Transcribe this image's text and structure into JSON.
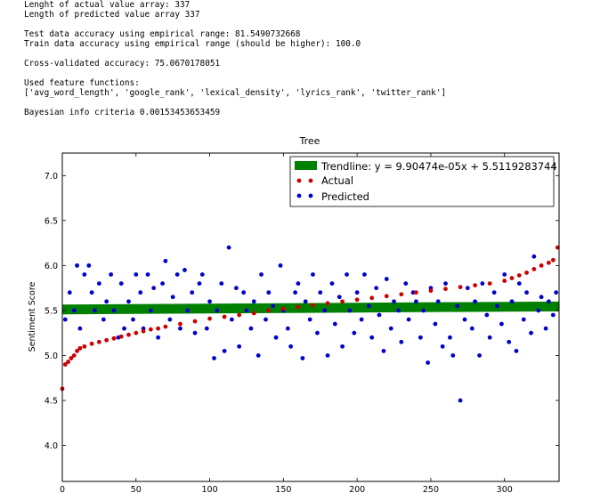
{
  "console": {
    "line_actual_len": "Lenght of actual value array: 337",
    "line_pred_len": "Length of predicted value array 337",
    "line_test_acc": "Test data accuracy using empirical range: 81.5490732668",
    "line_train_acc": "Train data accuracy using empirical range (should be higher): 100.0",
    "line_cv_acc": "Cross-validated accuracy: 75.0670178051",
    "line_features_header": "Used feature functions:",
    "line_features_list": "['avg_word_length', 'google_rank', 'lexical_density', 'lyrics_rank', 'twitter_rank']",
    "line_bic": "Bayesian info criteria 0.00153453653459"
  },
  "chart_data": {
    "type": "scatter",
    "title": "Tree",
    "xlabel": "",
    "ylabel": "Sentiment Score",
    "xlim": [
      0,
      337
    ],
    "ylim": [
      3.6,
      7.25
    ],
    "xticks": [
      0,
      50,
      100,
      150,
      200,
      250,
      300
    ],
    "yticks": [
      4.0,
      4.5,
      5.0,
      5.5,
      6.0,
      6.5,
      7.0
    ],
    "grid": false,
    "legend_position": "top-right",
    "trendline": {
      "label": "Trendline: y = 9.90474e-05x + 5.5119283744",
      "slope": 9.90474e-05,
      "intercept": 5.5119283744,
      "color": "#008000"
    },
    "series": [
      {
        "name": "Actual",
        "color": "#cc0000",
        "x": [
          0,
          2,
          4,
          6,
          8,
          10,
          12,
          15,
          20,
          25,
          30,
          35,
          40,
          45,
          50,
          55,
          60,
          65,
          70,
          80,
          90,
          100,
          110,
          120,
          130,
          140,
          150,
          160,
          170,
          180,
          190,
          200,
          210,
          220,
          230,
          240,
          250,
          260,
          270,
          280,
          290,
          300,
          305,
          310,
          315,
          320,
          325,
          330,
          333,
          336
        ],
        "y": [
          4.63,
          4.9,
          4.93,
          4.97,
          5.0,
          5.05,
          5.08,
          5.1,
          5.13,
          5.15,
          5.17,
          5.19,
          5.21,
          5.23,
          5.25,
          5.27,
          5.29,
          5.3,
          5.32,
          5.35,
          5.38,
          5.41,
          5.43,
          5.45,
          5.47,
          5.5,
          5.52,
          5.54,
          5.56,
          5.58,
          5.6,
          5.62,
          5.64,
          5.66,
          5.68,
          5.7,
          5.72,
          5.74,
          5.76,
          5.78,
          5.8,
          5.83,
          5.86,
          5.89,
          5.92,
          5.96,
          6.0,
          6.03,
          6.06,
          6.2
        ]
      },
      {
        "name": "Predicted",
        "color": "#0000cc",
        "x": [
          2,
          5,
          8,
          10,
          12,
          15,
          18,
          20,
          22,
          25,
          28,
          30,
          33,
          35,
          38,
          40,
          42,
          45,
          48,
          50,
          53,
          55,
          58,
          60,
          62,
          65,
          68,
          70,
          73,
          75,
          78,
          80,
          83,
          85,
          88,
          90,
          93,
          95,
          98,
          100,
          103,
          105,
          108,
          110,
          113,
          115,
          118,
          120,
          123,
          125,
          128,
          130,
          133,
          135,
          138,
          140,
          143,
          145,
          148,
          150,
          153,
          155,
          158,
          160,
          163,
          165,
          168,
          170,
          173,
          175,
          178,
          180,
          183,
          185,
          188,
          190,
          193,
          195,
          198,
          200,
          203,
          205,
          208,
          210,
          213,
          215,
          218,
          220,
          223,
          225,
          228,
          230,
          233,
          235,
          238,
          240,
          243,
          245,
          248,
          250,
          253,
          255,
          258,
          260,
          263,
          265,
          268,
          270,
          273,
          275,
          278,
          280,
          283,
          285,
          288,
          290,
          293,
          295,
          298,
          300,
          303,
          305,
          308,
          310,
          313,
          315,
          318,
          320,
          323,
          325,
          328,
          330,
          333,
          335
        ],
        "y": [
          5.4,
          5.7,
          5.5,
          6.0,
          5.3,
          5.9,
          6.0,
          5.7,
          5.5,
          5.8,
          5.4,
          5.6,
          5.9,
          5.5,
          5.2,
          5.8,
          5.3,
          5.6,
          5.4,
          5.9,
          5.7,
          5.3,
          5.9,
          5.5,
          5.75,
          5.2,
          5.8,
          6.05,
          5.4,
          5.65,
          5.9,
          5.3,
          5.95,
          5.5,
          5.7,
          5.25,
          5.8,
          5.9,
          5.3,
          5.6,
          4.97,
          5.5,
          5.8,
          5.05,
          6.2,
          5.4,
          5.75,
          5.1,
          5.7,
          5.5,
          5.3,
          5.6,
          5.0,
          5.9,
          5.4,
          5.7,
          5.55,
          5.2,
          6.0,
          5.5,
          5.3,
          5.1,
          5.7,
          5.8,
          4.97,
          5.6,
          5.4,
          5.9,
          5.25,
          5.7,
          5.5,
          5.0,
          5.8,
          5.35,
          5.65,
          5.1,
          5.9,
          5.5,
          5.25,
          5.7,
          5.4,
          5.9,
          5.55,
          5.2,
          5.75,
          5.45,
          5.05,
          5.85,
          5.3,
          5.6,
          5.5,
          5.15,
          5.8,
          5.4,
          5.7,
          5.6,
          5.2,
          5.5,
          4.92,
          5.75,
          5.35,
          5.6,
          5.1,
          5.8,
          5.2,
          5.0,
          5.55,
          4.5,
          5.4,
          5.75,
          5.3,
          5.6,
          5.0,
          5.8,
          5.45,
          5.2,
          5.7,
          5.55,
          5.35,
          5.9,
          5.15,
          5.6,
          5.05,
          5.8,
          5.4,
          5.7,
          5.25,
          6.1,
          5.5,
          5.65,
          5.3,
          5.6,
          5.45,
          5.7
        ]
      }
    ]
  }
}
